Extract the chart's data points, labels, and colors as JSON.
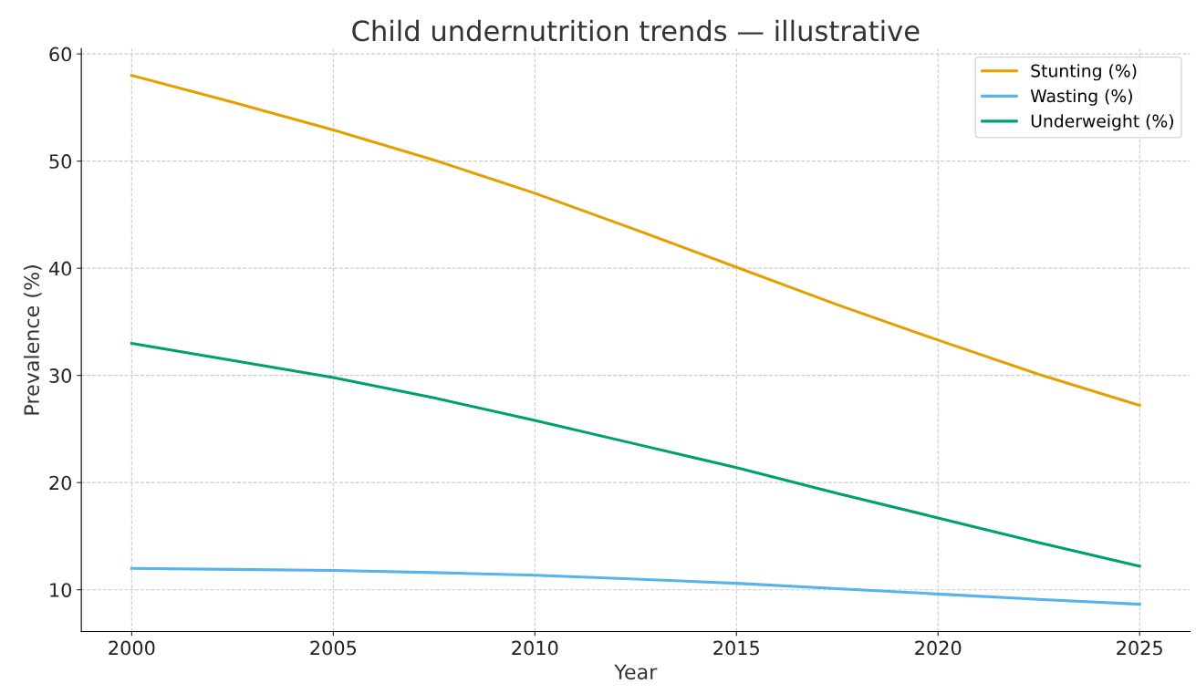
{
  "chart_data": {
    "type": "line",
    "title": "Child undernutrition trends — illustrative",
    "xlabel": "Year",
    "ylabel": "Prevalence (%)",
    "x": [
      2000,
      2002.5,
      2005,
      2007.5,
      2010,
      2012.5,
      2015,
      2017.5,
      2020,
      2022.5,
      2025
    ],
    "series": [
      {
        "name": "Stunting (%)",
        "color": "#e69f00",
        "values": [
          58.0,
          55.5,
          52.9,
          50.1,
          47.0,
          43.6,
          40.1,
          36.6,
          33.3,
          30.1,
          27.2
        ]
      },
      {
        "name": "Wasting (%)",
        "color": "#56b4e9",
        "values": [
          12.0,
          11.9,
          11.8,
          11.6,
          11.35,
          11.0,
          10.6,
          10.1,
          9.6,
          9.1,
          8.65
        ]
      },
      {
        "name": "Underweight (%)",
        "color": "#009e73",
        "values": [
          33.0,
          31.4,
          29.8,
          27.9,
          25.8,
          23.6,
          21.4,
          19.0,
          16.7,
          14.4,
          12.2
        ]
      }
    ],
    "xlim": [
      1998.75,
      2026.25
    ],
    "xticks": [
      2000,
      2005,
      2010,
      2015,
      2020,
      2025
    ],
    "ylim": [
      6.1,
      60.5
    ],
    "yticks": [
      10,
      20,
      30,
      40,
      50,
      60
    ],
    "grid": true,
    "legend": "upper right",
    "marker": "none",
    "line_style": "solid"
  }
}
